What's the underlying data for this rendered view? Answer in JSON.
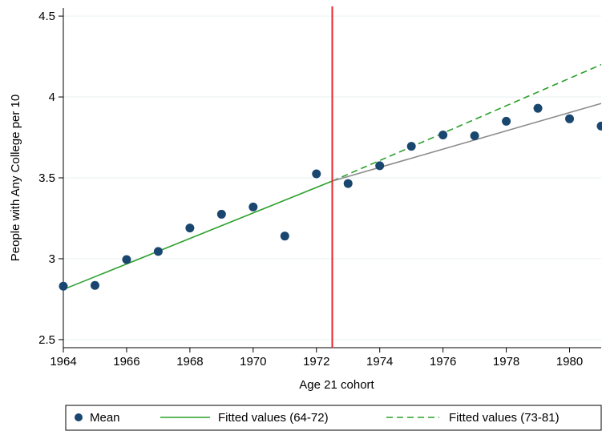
{
  "chart_data": {
    "type": "scatter",
    "title": "",
    "xlabel": "Age 21 cohort",
    "ylabel": "People with Any College per 10",
    "xlim": [
      1964,
      1981
    ],
    "ylim": [
      2.45,
      4.55
    ],
    "xticks": [
      1964,
      1966,
      1968,
      1970,
      1972,
      1974,
      1976,
      1978,
      1980
    ],
    "xtick_labels": [
      "1964",
      "1966",
      "1968",
      "1970",
      "1972",
      "1974",
      "1976",
      "1978",
      "1980"
    ],
    "yticks": [
      2.5,
      3,
      3.5,
      4,
      4.5
    ],
    "ytick_labels": [
      "2.5",
      "3",
      "3.5",
      "4",
      "4.5"
    ],
    "grid": "horizontal",
    "vertical_line": {
      "x": 1972.5,
      "color": "#e8262b"
    },
    "legend_position": "bottom",
    "series": [
      {
        "name": "Mean",
        "kind": "points",
        "color": "#1a476f",
        "x": [
          1964,
          1965,
          1966,
          1967,
          1968,
          1969,
          1970,
          1971,
          1972,
          1973,
          1974,
          1975,
          1976,
          1977,
          1978,
          1979,
          1980,
          1981
        ],
        "y": [
          2.83,
          2.835,
          2.995,
          3.045,
          3.19,
          3.275,
          3.32,
          3.14,
          3.525,
          3.465,
          3.575,
          3.695,
          3.765,
          3.76,
          3.85,
          3.93,
          3.865,
          3.82
        ]
      },
      {
        "name": "Fitted values (64-72)",
        "kind": "line",
        "style": "solid",
        "color": "#2ca02c",
        "x": [
          1964,
          1972.5
        ],
        "y": [
          2.81,
          3.48
        ]
      },
      {
        "name": "Fitted values (73-81)",
        "kind": "line",
        "style": "dashed",
        "color": "#2ca02c",
        "x": [
          1972.5,
          1981
        ],
        "y": [
          3.48,
          4.2
        ]
      },
      {
        "name": "",
        "kind": "line",
        "style": "solid",
        "color": "#8c8c8c",
        "x": [
          1972.5,
          1981
        ],
        "y": [
          3.48,
          3.96
        ]
      }
    ]
  }
}
